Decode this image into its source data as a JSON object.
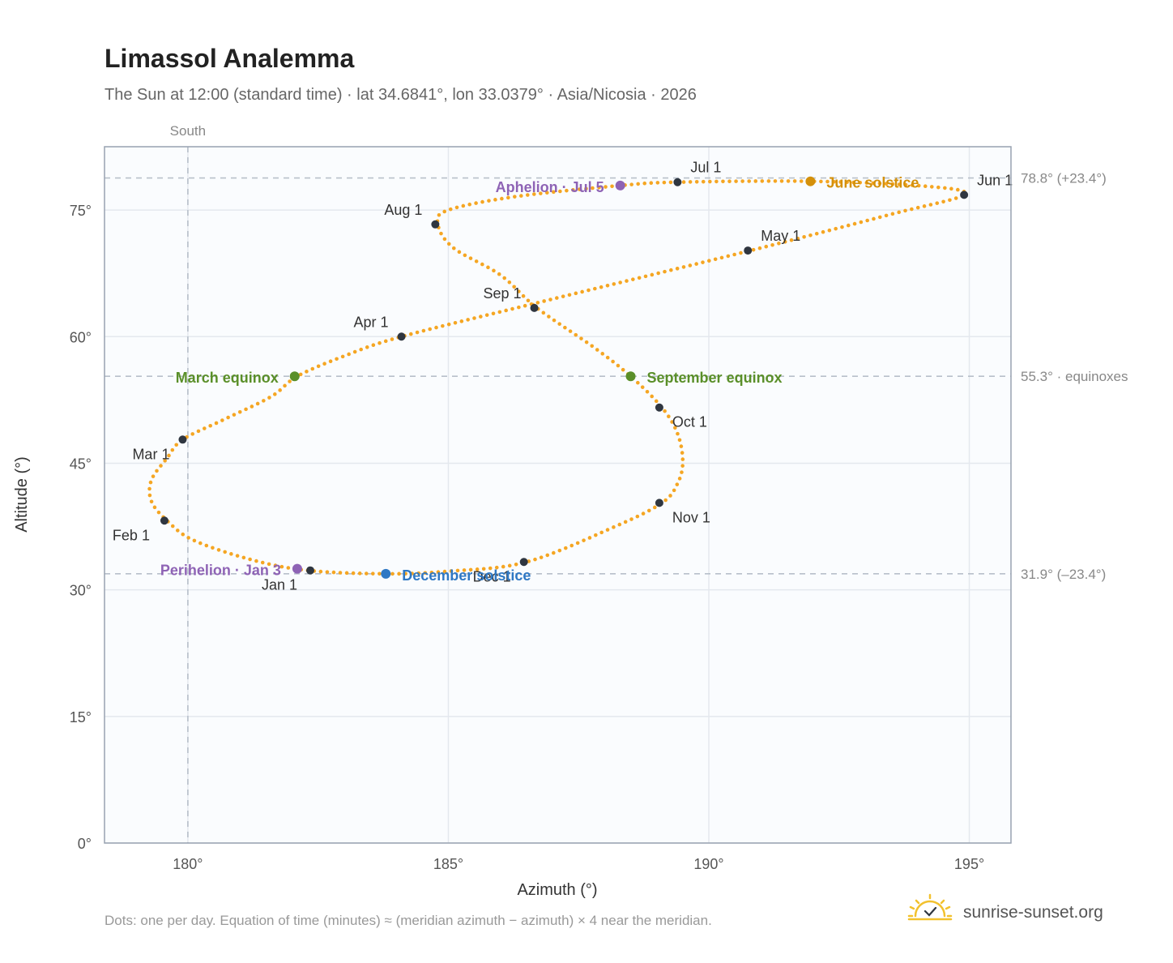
{
  "header": {
    "title": "Limassol Analemma",
    "subtitle": "The Sun at 12:00 (standard time) · lat 34.6841°, lon 33.0379° · Asia/Nicosia · 2026"
  },
  "footer": {
    "note": "Dots: one per day. Equation of time (minutes) ≈ (meridian azimuth − azimuth) × 4 near the meridian.",
    "brand": "sunrise-sunset.org"
  },
  "colors": {
    "curve": "#f5a623",
    "month_marker": "#2f3640",
    "equinox": "#5a8f29",
    "june_solstice": "#d4900a",
    "december_solstice": "#2f78c4",
    "apsis": "#8e63b5",
    "plot_bg": "#fafcfe",
    "grid": "#e4e8ee",
    "frame": "#98a2b0",
    "ref_line": "#b8c0ca"
  },
  "chart_data": {
    "type": "scatter",
    "title": "Limassol Analemma",
    "xlabel": "Azimuth (°)",
    "ylabel": "Altitude (°)",
    "xlim": [
      178.4,
      195.8
    ],
    "ylim": [
      0,
      82.5
    ],
    "x_ticks": [
      {
        "value": 180,
        "label": "180°"
      },
      {
        "value": 185,
        "label": "185°"
      },
      {
        "value": 190,
        "label": "190°"
      },
      {
        "value": 195,
        "label": "195°"
      }
    ],
    "y_ticks": [
      {
        "value": 0,
        "label": "0°"
      },
      {
        "value": 15,
        "label": "15°"
      },
      {
        "value": 30,
        "label": "30°"
      },
      {
        "value": 45,
        "label": "45°"
      },
      {
        "value": 60,
        "label": "60°"
      },
      {
        "value": 75,
        "label": "75°"
      }
    ],
    "grid": true,
    "meridian": {
      "azimuth": 180,
      "label": "South"
    },
    "reference_lines": [
      {
        "altitude": 78.8,
        "label": "78.8° (+23.4°)"
      },
      {
        "altitude": 55.3,
        "label": "55.3° · equinoxes"
      },
      {
        "altitude": 31.9,
        "label": "31.9° (–23.4°)"
      }
    ],
    "daily_path": [
      [
        182.3,
        32.3
      ],
      [
        181.2,
        33.6
      ],
      [
        180.1,
        35.9
      ],
      [
        179.6,
        38.2
      ],
      [
        179.3,
        40.5
      ],
      [
        179.3,
        43.0
      ],
      [
        179.6,
        45.6
      ],
      [
        179.9,
        47.8
      ],
      [
        180.7,
        50.2
      ],
      [
        181.6,
        52.9
      ],
      [
        182.1,
        55.3
      ],
      [
        183.0,
        57.7
      ],
      [
        184.1,
        60.0
      ],
      [
        186.7,
        64.0
      ],
      [
        190.8,
        70.2
      ],
      [
        193.5,
        74.5
      ],
      [
        194.9,
        76.8
      ],
      [
        194.2,
        77.8
      ],
      [
        192.0,
        78.4
      ],
      [
        189.4,
        78.3
      ],
      [
        188.3,
        77.9
      ],
      [
        186.3,
        76.6
      ],
      [
        185.0,
        75.0
      ],
      [
        184.8,
        73.3
      ],
      [
        185.1,
        70.5
      ],
      [
        186.0,
        67.3
      ],
      [
        186.7,
        63.4
      ],
      [
        187.8,
        58.7
      ],
      [
        188.5,
        55.3
      ],
      [
        189.1,
        51.6
      ],
      [
        189.4,
        48.5
      ],
      [
        189.5,
        45.2
      ],
      [
        189.4,
        42.6
      ],
      [
        189.1,
        40.3
      ],
      [
        188.2,
        37.5
      ],
      [
        186.5,
        33.3
      ],
      [
        185.0,
        32.2
      ],
      [
        183.8,
        31.9
      ],
      [
        182.3,
        32.3
      ]
    ],
    "month_markers": [
      {
        "label": "Jan 1",
        "x": 182.35,
        "y": 32.3,
        "anchor": "end",
        "dx": -16,
        "dy": 24
      },
      {
        "label": "Feb 1",
        "x": 179.55,
        "y": 38.2,
        "anchor": "end",
        "dx": -18,
        "dy": 24
      },
      {
        "label": "Mar 1",
        "x": 179.9,
        "y": 47.8,
        "anchor": "end",
        "dx": -16,
        "dy": 24
      },
      {
        "label": "Apr 1",
        "x": 184.1,
        "y": 60.0,
        "anchor": "end",
        "dx": -16,
        "dy": -12
      },
      {
        "label": "May 1",
        "x": 190.75,
        "y": 70.2,
        "anchor": "start",
        "dx": 16,
        "dy": -12
      },
      {
        "label": "Jun 1",
        "x": 194.9,
        "y": 76.8,
        "anchor": "start",
        "dx": 16,
        "dy": -12
      },
      {
        "label": "Jul 1",
        "x": 189.4,
        "y": 78.3,
        "anchor": "start",
        "dx": 16,
        "dy": -12
      },
      {
        "label": "Aug 1",
        "x": 184.75,
        "y": 73.3,
        "anchor": "end",
        "dx": -16,
        "dy": -12
      },
      {
        "label": "Sep 1",
        "x": 186.65,
        "y": 63.4,
        "anchor": "end",
        "dx": -16,
        "dy": -12
      },
      {
        "label": "Oct 1",
        "x": 189.05,
        "y": 51.6,
        "anchor": "start",
        "dx": 16,
        "dy": 24
      },
      {
        "label": "Nov 1",
        "x": 189.05,
        "y": 40.3,
        "anchor": "start",
        "dx": 16,
        "dy": 24
      },
      {
        "label": "Dec 1",
        "x": 186.45,
        "y": 33.3,
        "anchor": "end",
        "dx": -16,
        "dy": 24
      }
    ],
    "events": [
      {
        "label": "March equinox",
        "x": 182.05,
        "y": 55.3,
        "color": "#5a8f29",
        "anchor": "end",
        "dx": -20,
        "dy": 8
      },
      {
        "label": "September equinox",
        "x": 188.5,
        "y": 55.3,
        "color": "#5a8f29",
        "anchor": "start",
        "dx": 20,
        "dy": 8
      },
      {
        "label": "June solstice",
        "x": 191.95,
        "y": 78.4,
        "color": "#d4900a",
        "anchor": "start",
        "dx": 20,
        "dy": 8
      },
      {
        "label": "December solstice",
        "x": 183.8,
        "y": 31.9,
        "color": "#2f78c4",
        "anchor": "start",
        "dx": 20,
        "dy": 8
      },
      {
        "label": "Aphelion · Jul 5",
        "x": 188.3,
        "y": 77.9,
        "color": "#8e63b5",
        "anchor": "end",
        "dx": -20,
        "dy": 8
      },
      {
        "label": "Perihelion · Jan 3",
        "x": 182.1,
        "y": 32.5,
        "color": "#8e63b5",
        "anchor": "end",
        "dx": -20,
        "dy": 8
      }
    ]
  }
}
